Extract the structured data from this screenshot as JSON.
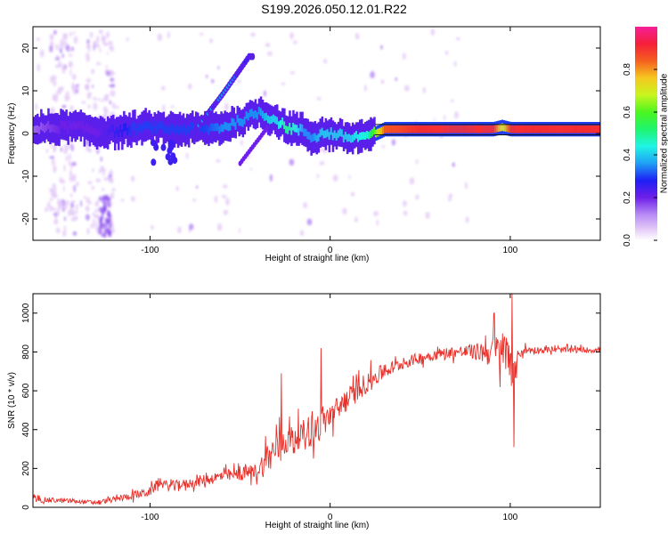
{
  "title": "S199.2026.050.12.01.R22",
  "chart_data": [
    {
      "type": "heatmap",
      "xlabel": "Height of straight line (km)",
      "ylabel": "Frequency (Hz)",
      "xlim": [
        -165,
        150
      ],
      "ylim": [
        -25,
        25
      ],
      "x_ticks": [
        -100,
        0,
        100
      ],
      "y_ticks": [
        -20,
        -10,
        0,
        10,
        20
      ],
      "colorbar": {
        "label": "Normalized spectral amplitude",
        "range": [
          0,
          1
        ],
        "ticks": [
          0.0,
          0.2,
          0.4,
          0.6,
          0.8
        ],
        "tick_labels": [
          "0.0",
          "0.2",
          "0.4",
          "0.6",
          "0.8"
        ]
      },
      "ridge": {
        "x": [
          -165,
          -150,
          -140,
          -130,
          -120,
          -110,
          -100,
          -90,
          -80,
          -70,
          -60,
          -50,
          -40,
          -35,
          -30,
          -25,
          -20,
          -15,
          -10,
          -5,
          0,
          10,
          20,
          25,
          30,
          50,
          70,
          90,
          95,
          100,
          120,
          150
        ],
        "y": [
          1,
          1.5,
          1.5,
          0.5,
          0.5,
          1,
          1.5,
          1,
          1,
          1,
          1.5,
          3,
          5,
          4,
          3,
          1.5,
          1,
          0.5,
          -1,
          0,
          0,
          -1,
          -0.5,
          0,
          1,
          1,
          1,
          1,
          1.5,
          1,
          1,
          1
        ],
        "amplitude": [
          0.15,
          0.2,
          0.2,
          0.2,
          0.25,
          0.3,
          0.3,
          0.3,
          0.3,
          0.3,
          0.35,
          0.35,
          0.35,
          0.4,
          0.4,
          0.5,
          0.45,
          0.35,
          0.35,
          0.4,
          0.4,
          0.4,
          0.45,
          0.65,
          0.85,
          0.9,
          0.9,
          0.9,
          0.7,
          0.9,
          0.9,
          0.9
        ]
      },
      "branch": {
        "x": [
          -60,
          -55,
          -50,
          -45
        ],
        "y": [
          9,
          12,
          15,
          18
        ],
        "amplitude": [
          0.3,
          0.3,
          0.25,
          0.2
        ]
      }
    },
    {
      "type": "line",
      "xlabel": "Height of straight line (km)",
      "ylabel": "SNR (10 * v/v)",
      "xlim": [
        -165,
        150
      ],
      "ylim": [
        0,
        1100
      ],
      "x_ticks": [
        -100,
        0,
        100
      ],
      "y_ticks": [
        0,
        200,
        400,
        600,
        800,
        1000
      ],
      "color": "#e8302a",
      "trend": {
        "x": [
          -165,
          -150,
          -140,
          -130,
          -120,
          -110,
          -100,
          -95,
          -90,
          -80,
          -70,
          -60,
          -50,
          -40,
          -35,
          -30,
          -25,
          -20,
          -15,
          -10,
          -5,
          0,
          10,
          20,
          30,
          40,
          50,
          60,
          70,
          80,
          90,
          95,
          100,
          102,
          105,
          110,
          120,
          150
        ],
        "mean": [
          40,
          35,
          30,
          25,
          40,
          60,
          80,
          130,
          110,
          120,
          140,
          160,
          170,
          190,
          250,
          300,
          340,
          360,
          380,
          390,
          430,
          470,
          560,
          640,
          700,
          740,
          770,
          790,
          800,
          800,
          800,
          800,
          790,
          650,
          800,
          810,
          810,
          810
        ],
        "noise": [
          30,
          25,
          20,
          20,
          30,
          40,
          50,
          50,
          50,
          50,
          60,
          60,
          70,
          80,
          180,
          180,
          150,
          140,
          140,
          160,
          150,
          140,
          120,
          110,
          80,
          60,
          60,
          60,
          60,
          80,
          160,
          220,
          260,
          200,
          60,
          40,
          30,
          30
        ]
      },
      "extremes": [
        {
          "x": -27,
          "y": 690
        },
        {
          "x": -5,
          "y": 820
        },
        {
          "x": 91,
          "y": 1000
        },
        {
          "x": 101,
          "y": 1100
        },
        {
          "x": 102,
          "y": 310
        }
      ]
    }
  ]
}
